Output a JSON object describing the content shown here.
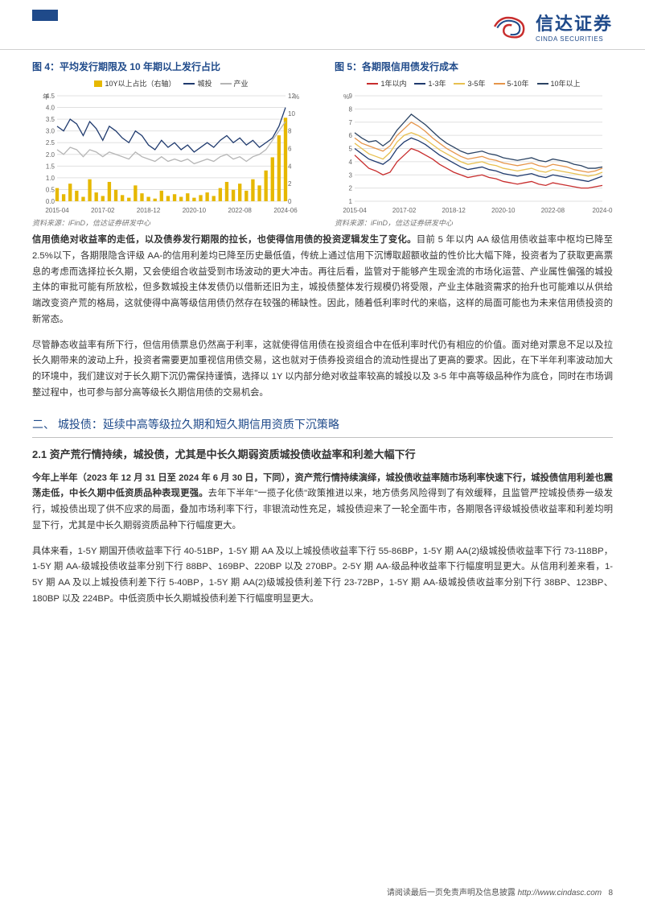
{
  "logo": {
    "cn": "信达证券",
    "en": "CINDA SECURITIES"
  },
  "chart4": {
    "title": "图 4：平均发行期限及 10 年期以上发行占比",
    "source": "资料来源：iFinD，信达证券研发中心",
    "legend": {
      "bar": "10Y以上占比（右轴）",
      "navy": "城投",
      "grey": "产业"
    },
    "x_labels": [
      "2015-04",
      "2017-02",
      "2018-12",
      "2020-10",
      "2022-08",
      "2024-06"
    ],
    "y_left": {
      "unit": "年",
      "ticks": [
        0,
        0.5,
        1.0,
        1.5,
        2.0,
        2.5,
        3.0,
        3.5,
        4.0,
        4.5
      ],
      "lim": [
        0,
        4.5
      ]
    },
    "y_right": {
      "unit": "%",
      "ticks": [
        0,
        2,
        4,
        6,
        8,
        10,
        12
      ],
      "lim": [
        0,
        12
      ]
    },
    "navy_series": [
      3.2,
      3.0,
      3.5,
      3.3,
      2.8,
      3.4,
      3.1,
      2.6,
      3.2,
      3.0,
      2.7,
      2.5,
      3.0,
      2.8,
      2.4,
      2.2,
      2.6,
      2.3,
      2.5,
      2.2,
      2.4,
      2.1,
      2.3,
      2.5,
      2.3,
      2.6,
      2.8,
      2.5,
      2.7,
      2.4,
      2.6,
      2.3,
      2.5,
      2.7,
      3.2,
      4.0
    ],
    "grey_series": [
      2.2,
      2.0,
      2.3,
      2.2,
      1.9,
      2.2,
      2.1,
      1.9,
      2.1,
      2.0,
      1.9,
      1.8,
      2.1,
      1.9,
      1.8,
      1.7,
      1.9,
      1.7,
      1.8,
      1.7,
      1.8,
      1.6,
      1.7,
      1.8,
      1.7,
      1.9,
      2.0,
      1.8,
      1.9,
      1.7,
      1.9,
      2.0,
      2.2,
      2.6,
      3.0,
      3.4
    ],
    "bar_series": [
      1.5,
      0.8,
      2.0,
      1.2,
      0.5,
      2.5,
      1.0,
      0.6,
      2.2,
      1.3,
      0.7,
      0.4,
      1.8,
      0.9,
      0.5,
      0.3,
      1.2,
      0.6,
      0.8,
      0.5,
      0.9,
      0.4,
      0.7,
      1.0,
      0.6,
      1.5,
      2.2,
      1.3,
      2.0,
      1.2,
      2.5,
      1.8,
      3.5,
      5.0,
      7.5,
      9.5
    ],
    "colors": {
      "bar": "#e6b800",
      "navy": "#1f3a6e",
      "grey": "#b5b5b5",
      "grid": "#e0e0e0",
      "axis": "#888",
      "bg": "#ffffff"
    },
    "line_width": 1.3
  },
  "chart5": {
    "title": "图 5：各期限信用债发行成本",
    "source": "资料来源：iFinD，信达证券研发中心",
    "legend": {
      "red": "1年以内",
      "navy": "1-3年",
      "yellow": "3-5年",
      "orange": "5-10年",
      "dark": "10年以上"
    },
    "x_labels": [
      "2015-04",
      "2017-02",
      "2018-12",
      "2020-10",
      "2022-08",
      "2024-0"
    ],
    "y": {
      "unit": "%",
      "ticks": [
        1,
        2,
        3,
        4,
        5,
        6,
        7,
        8,
        9
      ],
      "lim": [
        1,
        9
      ]
    },
    "red": [
      4.5,
      4.0,
      3.5,
      3.3,
      3.0,
      3.2,
      4.0,
      4.5,
      5.0,
      4.8,
      4.5,
      4.2,
      3.8,
      3.5,
      3.2,
      3.0,
      2.8,
      2.9,
      3.0,
      2.8,
      2.7,
      2.5,
      2.4,
      2.3,
      2.4,
      2.5,
      2.3,
      2.2,
      2.4,
      2.3,
      2.2,
      2.1,
      2.0,
      2.0,
      2.1,
      2.2
    ],
    "navy": [
      5.0,
      4.6,
      4.2,
      4.0,
      3.8,
      4.2,
      5.0,
      5.5,
      5.8,
      5.6,
      5.3,
      4.9,
      4.5,
      4.2,
      3.9,
      3.6,
      3.4,
      3.5,
      3.6,
      3.4,
      3.3,
      3.1,
      3.0,
      2.9,
      3.0,
      3.1,
      2.9,
      2.8,
      3.0,
      2.9,
      2.8,
      2.7,
      2.6,
      2.5,
      2.7,
      2.9
    ],
    "yellow": [
      5.4,
      5.0,
      4.6,
      4.4,
      4.2,
      4.7,
      5.5,
      6.0,
      6.2,
      6.0,
      5.7,
      5.3,
      4.9,
      4.6,
      4.3,
      4.0,
      3.8,
      3.9,
      4.0,
      3.8,
      3.7,
      3.5,
      3.4,
      3.3,
      3.4,
      3.5,
      3.3,
      3.2,
      3.4,
      3.3,
      3.2,
      3.1,
      3.0,
      2.9,
      3.0,
      3.2
    ],
    "orange": [
      5.8,
      5.4,
      5.2,
      5.0,
      4.8,
      5.2,
      6.0,
      6.5,
      7.0,
      6.7,
      6.3,
      5.8,
      5.4,
      5.0,
      4.7,
      4.4,
      4.2,
      4.3,
      4.4,
      4.2,
      4.1,
      3.9,
      3.8,
      3.7,
      3.8,
      3.9,
      3.7,
      3.6,
      3.8,
      3.7,
      3.6,
      3.4,
      3.3,
      3.2,
      3.3,
      3.5
    ],
    "dark": [
      6.2,
      5.8,
      5.5,
      5.6,
      5.2,
      5.6,
      6.4,
      7.0,
      7.6,
      7.2,
      6.8,
      6.3,
      5.8,
      5.4,
      5.1,
      4.8,
      4.6,
      4.7,
      4.8,
      4.6,
      4.5,
      4.3,
      4.2,
      4.1,
      4.2,
      4.3,
      4.1,
      4.0,
      4.2,
      4.1,
      4.0,
      3.8,
      3.7,
      3.5,
      3.5,
      3.6
    ],
    "colors": {
      "red": "#c82d2d",
      "navy": "#1f3a6e",
      "yellow": "#e8c050",
      "orange": "#e6954a",
      "dark": "#2b4363",
      "grid": "#e0e0e0",
      "axis": "#888",
      "bg": "#ffffff"
    },
    "line_width": 1.3
  },
  "para1_lead": "信用债绝对收益率的走低，以及债券发行期限的拉长，也使得信用债的投资逻辑发生了变化。",
  "para1_rest": "目前 5 年以内 AA 级信用债收益率中枢均已降至 2.5%以下，各期限隐含评级 AA-的信用利差均已降至历史最低值，传统上通过信用下沉博取超额收益的性价比大幅下降，投资者为了获取更高票息的考虑而选择拉长久期，又会使组合收益受到市场波动的更大冲击。再往后看，监管对于能够产生现金流的市场化运营、产业属性偏强的城投主体的审批可能有所放松，但多数城投主体发债仍以借新还旧为主，城投债整体发行规模仍将受限，产业主体融资需求的抬升也可能难以从供给端改变资产荒的格局，这就使得中高等级信用债仍然存在较强的稀缺性。因此，随着低利率时代的来临，这样的局面可能也为未来信用债投资的新常态。",
  "para2": "尽管静态收益率有所下行，但信用债票息仍然高于利率，这就使得信用债在投资组合中在低利率时代仍有相应的价值。面对绝对票息不足以及拉长久期带来的波动上升，投资者需要更加重视信用债交易，这也就对于债券投资组合的流动性提出了更高的要求。因此，在下半年利率波动加大的环境中，我们建议对于长久期下沉仍需保持谨慎，选择以 1Y 以内部分绝对收益率较高的城投以及 3-5 年中高等级品种作为底仓，同时在市场调整过程中，也可参与部分高等级长久期信用债的交易机会。",
  "section2": "二、 城投债：延续中高等级拉久期和短久期信用资质下沉策略",
  "subsection21": "2.1 资产荒行情持续，城投债，尤其是中长久期弱资质城投债收益率和利差大幅下行",
  "para3_lead": "今年上半年（2023 年 12 月 31 日至 2024 年 6 月 30 日，下同），资产荒行情持续演绎，城投债收益率随市场利率快速下行，城投债信用利差也震荡走低，中长久期中低资质品种表现更强。",
  "para3_rest": "去年下半年\"一揽子化债\"政策推进以来，地方债务风险得到了有效缓释，且监管严控城投债券一级发行，城投债出现了供不应求的局面，叠加市场利率下行，非银流动性充足，城投债迎来了一轮全面牛市，各期限各评级城投债收益率和利差均明显下行，尤其是中长久期弱资质品种下行幅度更大。",
  "para4": "具体来看，1-5Y 期国开债收益率下行 40-51BP，1-5Y 期 AA 及以上城投债收益率下行 55-86BP，1-5Y 期 AA(2)级城投债收益率下行 73-118BP，1-5Y 期 AA-级城投债收益率分别下行 88BP、169BP、220BP 以及 270BP。2-5Y 期 AA-级品种收益率下行幅度明显更大。从信用利差来看，1-5Y 期 AA 及以上城投债利差下行 5-40BP，1-5Y 期 AA(2)级城投债利差下行 23-72BP，1-5Y 期 AA-级城投债收益率分别下行 38BP、123BP、180BP 以及 224BP。中低资质中长久期城投债利差下行幅度明显更大。",
  "footer": {
    "text": "请阅读最后一页免责声明及信息披露",
    "url": "http://www.cindasc.com",
    "page": "8"
  }
}
